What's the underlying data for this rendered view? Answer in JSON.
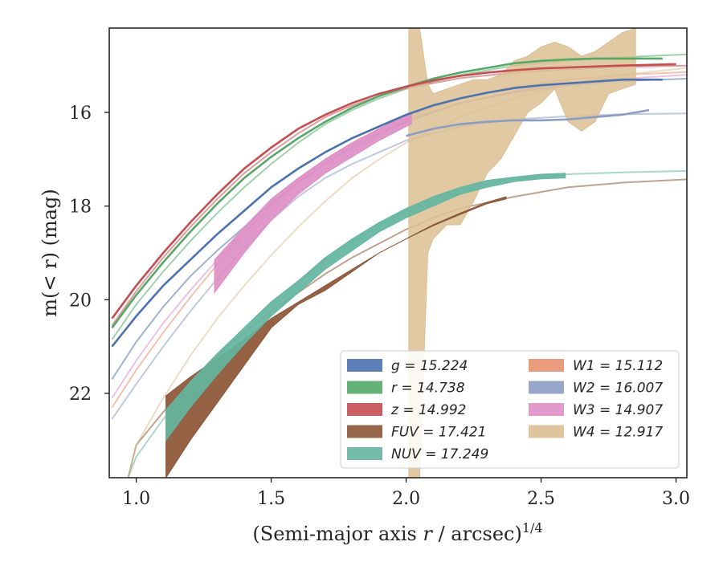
{
  "chart_data": {
    "type": "line",
    "xlabel": "(Semi-major axis r / arcsec)",
    "xlabel_italic_part": "r",
    "xlabel_superscript": "1/4",
    "ylabel": "m(< r) (mag)",
    "xlim": [
      0.9,
      3.04
    ],
    "ylim": [
      23.8,
      14.2
    ],
    "y_inverted": true,
    "x_ticks": [
      1.0,
      1.5,
      2.0,
      2.5,
      3.0
    ],
    "x_tick_labels": [
      "1.0",
      "1.5",
      "2.0",
      "2.5",
      "3.0"
    ],
    "y_ticks": [
      16,
      18,
      20,
      22
    ],
    "y_tick_labels": [
      "16",
      "18",
      "20",
      "22"
    ],
    "grid": false,
    "legend_position": "lower-right",
    "legend_columns": 2,
    "series": [
      {
        "name": "g = 15.224",
        "color": "#4c72b0",
        "style": "line",
        "x": [
          0.91,
          1.0,
          1.1,
          1.2,
          1.3,
          1.4,
          1.5,
          1.6,
          1.7,
          1.8,
          1.9,
          2.0,
          2.1,
          2.2,
          2.3,
          2.4,
          2.5,
          2.6,
          2.7,
          2.8,
          2.95
        ],
        "y": [
          21.0,
          20.35,
          19.7,
          19.15,
          18.6,
          18.1,
          17.6,
          17.2,
          16.85,
          16.55,
          16.3,
          16.05,
          15.85,
          15.7,
          15.58,
          15.48,
          15.42,
          15.38,
          15.34,
          15.3,
          15.3
        ],
        "model_x": [
          0.91,
          1.0,
          1.1,
          1.2,
          1.3,
          1.4,
          1.5,
          1.6,
          1.7,
          1.8,
          1.9,
          2.0,
          2.2,
          2.4,
          2.6,
          2.8,
          3.04
        ],
        "model_y": [
          21.7,
          20.9,
          20.15,
          19.5,
          18.95,
          18.45,
          17.95,
          17.5,
          17.1,
          16.75,
          16.45,
          16.2,
          15.8,
          15.57,
          15.42,
          15.33,
          15.28
        ]
      },
      {
        "name": "r = 14.738",
        "color": "#55a868",
        "style": "line",
        "x": [
          0.91,
          1.0,
          1.1,
          1.2,
          1.3,
          1.4,
          1.5,
          1.6,
          1.7,
          1.8,
          1.9,
          2.0,
          2.1,
          2.2,
          2.3,
          2.4,
          2.5,
          2.6,
          2.7,
          2.8,
          2.95
        ],
        "y": [
          20.6,
          19.9,
          19.2,
          18.55,
          17.95,
          17.4,
          16.95,
          16.55,
          16.2,
          15.9,
          15.65,
          15.45,
          15.28,
          15.15,
          15.05,
          14.95,
          14.9,
          14.87,
          14.85,
          14.85,
          14.85
        ],
        "model_x": [
          0.91,
          1.0,
          1.1,
          1.2,
          1.3,
          1.4,
          1.5,
          1.6,
          1.7,
          1.8,
          1.9,
          2.0,
          2.2,
          2.4,
          2.6,
          2.8,
          3.04
        ],
        "model_y": [
          20.85,
          20.1,
          19.4,
          18.75,
          18.15,
          17.6,
          17.1,
          16.65,
          16.25,
          15.95,
          15.7,
          15.5,
          15.2,
          15.0,
          14.9,
          14.82,
          14.76
        ]
      },
      {
        "name": "z = 14.992",
        "color": "#c44e52",
        "style": "line",
        "x": [
          0.91,
          1.0,
          1.1,
          1.2,
          1.3,
          1.4,
          1.5,
          1.6,
          1.7,
          1.8,
          1.9,
          2.0,
          2.1,
          2.2,
          2.3,
          2.4,
          2.5,
          2.6,
          2.7,
          2.8,
          3.0
        ],
        "y": [
          20.4,
          19.7,
          19.0,
          18.35,
          17.75,
          17.2,
          16.75,
          16.35,
          16.05,
          15.8,
          15.6,
          15.45,
          15.32,
          15.22,
          15.15,
          15.1,
          15.06,
          15.04,
          15.02,
          15.0,
          14.97
        ],
        "model_x": [
          0.91,
          1.0,
          1.1,
          1.2,
          1.3,
          1.4,
          1.5,
          1.6,
          1.7,
          1.8,
          1.9,
          2.0,
          2.2,
          2.4,
          2.6,
          2.8,
          3.04
        ],
        "model_y": [
          20.55,
          19.82,
          19.1,
          18.45,
          17.85,
          17.3,
          16.85,
          16.45,
          16.1,
          15.85,
          15.65,
          15.48,
          15.27,
          15.15,
          15.08,
          15.03,
          15.0
        ]
      },
      {
        "name": "FUV = 17.421",
        "color": "#8c5536",
        "style": "band",
        "x": [
          1.11,
          1.2,
          1.3,
          1.4,
          1.5,
          1.6,
          1.7,
          1.8,
          1.9,
          2.0,
          2.1,
          2.2,
          2.3,
          2.37
        ],
        "y_upper": [
          22.05,
          21.65,
          21.25,
          20.85,
          20.4,
          20.05,
          19.7,
          19.35,
          19.0,
          18.7,
          18.4,
          18.15,
          17.92,
          17.8
        ],
        "y_lower": [
          23.8,
          23.0,
          22.2,
          21.4,
          20.6,
          20.1,
          19.8,
          19.4,
          19.0,
          18.7,
          18.42,
          18.18,
          17.95,
          17.85
        ],
        "model_x": [
          0.97,
          1.0,
          1.1,
          1.2,
          1.3,
          1.4,
          1.5,
          1.6,
          1.7,
          1.8,
          1.9,
          2.0,
          2.1,
          2.2,
          2.4,
          2.6,
          2.8,
          3.04
        ],
        "model_y": [
          23.8,
          23.1,
          22.4,
          21.75,
          21.2,
          20.7,
          20.25,
          19.85,
          19.45,
          19.1,
          18.8,
          18.5,
          18.25,
          18.05,
          17.8,
          17.6,
          17.5,
          17.43
        ]
      },
      {
        "name": "NUV = 17.249",
        "color": "#64b5a0",
        "style": "band",
        "x": [
          1.11,
          1.2,
          1.3,
          1.4,
          1.5,
          1.6,
          1.7,
          1.8,
          1.9,
          2.0,
          2.1,
          2.2,
          2.3,
          2.4,
          2.5,
          2.59
        ],
        "y_upper": [
          22.35,
          21.75,
          21.15,
          20.6,
          20.05,
          19.6,
          19.1,
          18.7,
          18.35,
          18.05,
          17.8,
          17.6,
          17.45,
          17.38,
          17.32,
          17.3
        ],
        "y_lower": [
          23.0,
          22.3,
          21.6,
          20.95,
          20.35,
          19.85,
          19.35,
          18.95,
          18.55,
          18.25,
          18.0,
          17.75,
          17.6,
          17.48,
          17.42,
          17.4
        ],
        "model_x": [
          0.97,
          1.0,
          1.1,
          1.2,
          1.3,
          1.4,
          1.5,
          1.6,
          1.7,
          1.8,
          1.9,
          2.0,
          2.1,
          2.2,
          2.4,
          2.6,
          2.8,
          3.04
        ],
        "model_y": [
          23.8,
          23.35,
          22.55,
          21.85,
          21.2,
          20.6,
          20.05,
          19.6,
          19.15,
          18.75,
          18.4,
          18.1,
          17.85,
          17.65,
          17.42,
          17.32,
          17.28,
          17.25
        ]
      },
      {
        "name": "W1 = 15.112",
        "color": "#e8906e",
        "style": "line",
        "x": [],
        "y": [],
        "model_x": [
          0.91,
          1.0,
          1.1,
          1.2,
          1.3,
          1.4,
          1.5,
          1.6,
          1.7,
          1.8,
          1.9,
          2.0,
          2.2,
          2.4,
          2.6,
          2.8,
          3.04
        ],
        "model_y": [
          22.3,
          21.5,
          20.7,
          19.95,
          19.25,
          18.6,
          18.0,
          17.45,
          17.0,
          16.65,
          16.35,
          16.1,
          15.7,
          15.45,
          15.3,
          15.2,
          15.14
        ]
      },
      {
        "name": "W2 = 16.007",
        "color": "#8c9cc4",
        "style": "line",
        "x": [
          2.0,
          2.1,
          2.2,
          2.3,
          2.4,
          2.5,
          2.6,
          2.7,
          2.8,
          2.9
        ],
        "y": [
          16.5,
          16.35,
          16.25,
          16.2,
          16.17,
          16.17,
          16.15,
          16.1,
          16.05,
          15.95
        ],
        "model_x": [
          0.91,
          1.0,
          1.1,
          1.2,
          1.3,
          1.4,
          1.5,
          1.6,
          1.7,
          1.8,
          1.9,
          2.0,
          2.2,
          2.4,
          2.6,
          2.8,
          3.04
        ],
        "model_y": [
          22.55,
          21.8,
          21.0,
          20.25,
          19.55,
          18.9,
          18.3,
          17.8,
          17.4,
          17.1,
          16.85,
          16.6,
          16.3,
          16.15,
          16.08,
          16.04,
          16.02
        ]
      },
      {
        "name": "W3 = 14.907",
        "color": "#dd8fc6",
        "style": "band",
        "x": [
          1.29,
          1.4,
          1.5,
          1.6,
          1.7,
          1.8,
          1.9,
          2.0,
          2.02
        ],
        "y_upper": [
          19.15,
          18.45,
          17.85,
          17.4,
          17.0,
          16.65,
          16.35,
          16.05,
          16.0
        ],
        "y_lower": [
          19.85,
          19.0,
          18.3,
          17.75,
          17.3,
          16.95,
          16.6,
          16.3,
          16.25
        ],
        "model_x": [
          0.91,
          1.0,
          1.1,
          1.2,
          1.3,
          1.4,
          1.5,
          1.6,
          1.7,
          1.8,
          1.9,
          2.0,
          2.2,
          2.4,
          2.6,
          2.8,
          3.04
        ],
        "model_y": [
          22.1,
          21.3,
          20.5,
          19.8,
          19.15,
          18.55,
          18.0,
          17.5,
          17.05,
          16.7,
          16.4,
          16.15,
          15.8,
          15.55,
          15.38,
          15.28,
          15.2
        ]
      },
      {
        "name": "W4 = 12.917",
        "color": "#dcbf93",
        "style": "band",
        "x": [
          2.01,
          2.05,
          2.08,
          2.1,
          2.15,
          2.2,
          2.25,
          2.3,
          2.35,
          2.4,
          2.45,
          2.5,
          2.55,
          2.6,
          2.65,
          2.7,
          2.75,
          2.8,
          2.85
        ],
        "y_upper": [
          14.2,
          14.2,
          15.4,
          15.6,
          15.5,
          15.4,
          15.3,
          15.3,
          15.2,
          14.9,
          14.8,
          14.6,
          14.5,
          14.6,
          14.8,
          14.7,
          14.5,
          14.3,
          14.2
        ],
        "y_lower": [
          23.8,
          23.8,
          19.0,
          18.7,
          18.4,
          18.4,
          17.9,
          17.3,
          17.0,
          16.5,
          16.0,
          15.8,
          15.5,
          16.2,
          16.4,
          16.2,
          15.6,
          15.5,
          15.4
        ],
        "model_x": [
          0.97,
          1.0,
          1.1,
          1.2,
          1.3,
          1.4,
          1.5,
          1.6,
          1.7,
          1.8,
          1.9,
          2.0,
          2.2,
          2.4,
          2.6,
          2.8,
          3.04
        ],
        "model_y": [
          23.8,
          23.1,
          22.1,
          21.2,
          20.4,
          19.7,
          19.05,
          18.45,
          17.9,
          17.4,
          17.0,
          16.65,
          16.1,
          15.7,
          15.4,
          15.2,
          15.05
        ]
      }
    ]
  }
}
